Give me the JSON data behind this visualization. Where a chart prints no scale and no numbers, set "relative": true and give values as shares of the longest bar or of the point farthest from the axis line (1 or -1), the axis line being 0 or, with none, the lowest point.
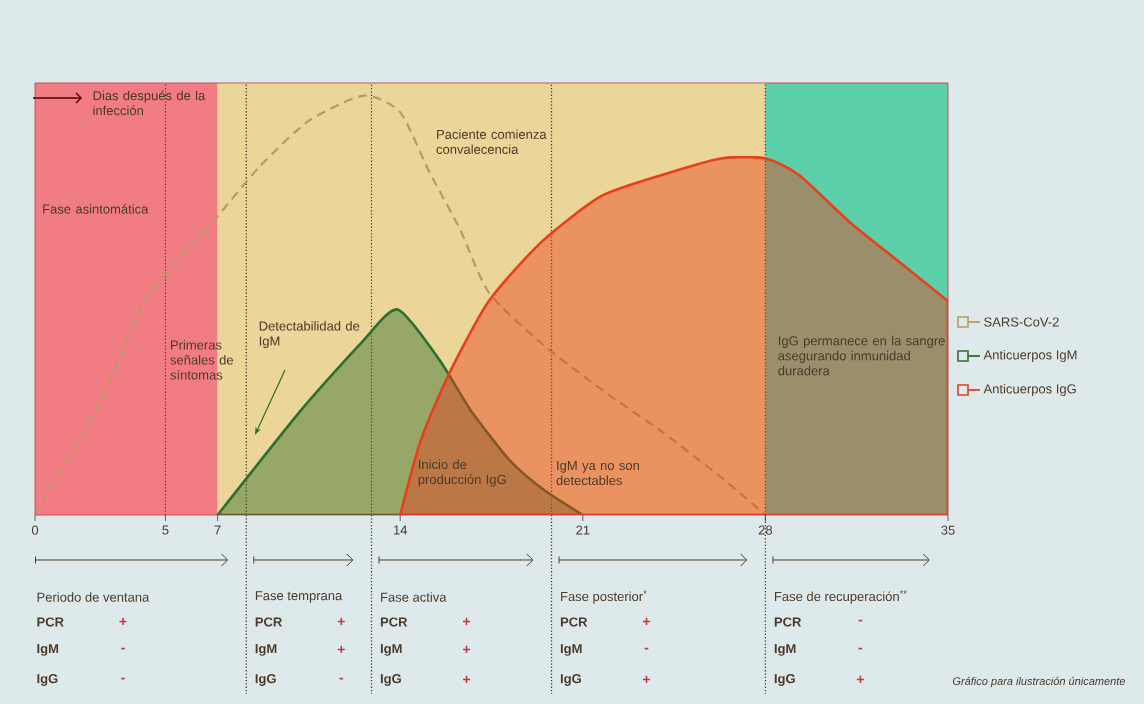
{
  "chart_data": {
    "type": "line",
    "relative": true,
    "xlabel": "Dias después de la infección",
    "xlim": [
      0,
      35
    ],
    "xticks": [
      0,
      5,
      7,
      14,
      21,
      28,
      35
    ],
    "legend": "right",
    "series": [
      {
        "name": "SARS-CoV-2",
        "line_style": "dashed",
        "color": "#b89a62",
        "x": [
          0,
          2.5,
          4.2,
          6.7,
          8.6,
          10.5,
          12.6,
          14.0,
          15.1,
          16.3,
          17.4,
          19.4,
          21.7,
          24.0,
          26.3,
          28.0
        ],
        "values": [
          0,
          0.27,
          0.51,
          0.69,
          0.83,
          0.94,
          1.0,
          0.96,
          0.82,
          0.68,
          0.53,
          0.41,
          0.3,
          0.2,
          0.09,
          0
        ]
      },
      {
        "name": "Anticuerpos IgM",
        "type": "area",
        "color": "#2e6e2e",
        "x": [
          7,
          10.2,
          12.5,
          13.9,
          15.5,
          16.7,
          18.2,
          19.5,
          21.0
        ],
        "values": [
          0,
          0.25,
          0.41,
          0.49,
          0.37,
          0.25,
          0.13,
          0.06,
          0
        ]
      },
      {
        "name": "Anticuerpos IgG",
        "type": "area",
        "color": "#e8401c",
        "x": [
          14.0,
          14.8,
          15.9,
          17.4,
          19.4,
          21.7,
          24.0,
          26.3,
          28.0,
          29.3,
          31.2,
          33.2,
          35.0
        ],
        "values": [
          0,
          0.18,
          0.34,
          0.51,
          0.65,
          0.76,
          0.81,
          0.85,
          0.85,
          0.81,
          0.7,
          0.6,
          0.51
        ]
      }
    ],
    "bands": [
      {
        "axis": "x",
        "from": 0,
        "to": 7,
        "color": "#f27c84"
      },
      {
        "axis": "x",
        "from": 7,
        "to": 28,
        "color": "#ebd598"
      },
      {
        "axis": "x",
        "from": 28,
        "to": 35,
        "color": "#5ccfab"
      }
    ],
    "ref_lines": [
      {
        "axis": "x",
        "value": 5,
        "label": "Primeras señales de síntomas",
        "line_style": "dotted"
      },
      {
        "axis": "x",
        "value": 8.1,
        "line_style": "dotted"
      },
      {
        "axis": "x",
        "value": 12.9,
        "line_style": "dotted"
      },
      {
        "axis": "x",
        "value": 19.8,
        "line_style": "dotted"
      },
      {
        "axis": "x",
        "value": 28,
        "line_style": "dotted"
      }
    ],
    "annotations": [
      "Fase asintomática",
      "Paciente comienza convalecencia",
      "Detectabilidad de IgM",
      "Inicio de producción IgG",
      "IgM ya no son detectables",
      "IgG permanece en la sangre asegurando inmunidad duradera",
      "Periodo de ventana",
      "PCR",
      "+",
      "IgM",
      "-",
      "IgG",
      "-",
      "Fase temprana",
      "PCR",
      "+",
      "IgM",
      "+",
      "IgG",
      "-",
      "Fase activa",
      "PCR",
      "+",
      "IgM",
      "+",
      "IgG",
      "+",
      "Fase posterior$^{*}$",
      "PCR",
      "+",
      "IgM",
      "-",
      "IgG",
      "+",
      "Fase de recuperación$^{**}$",
      "PCR",
      "-",
      "IgM",
      "-",
      "IgG",
      "+",
      "Gráfico para ilustración únicamente"
    ]
  }
}
